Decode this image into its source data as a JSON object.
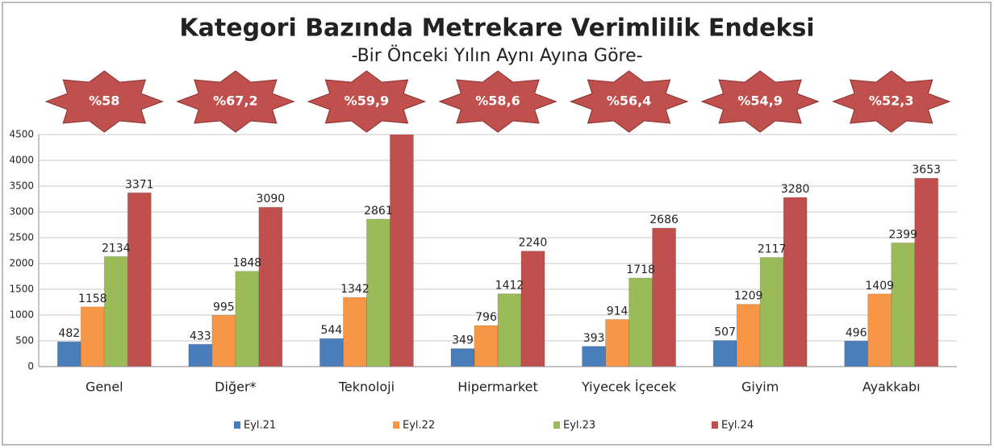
{
  "chart_data": {
    "type": "bar",
    "title": "Kategori Bazında Metrekare Verimlilik Endeksi",
    "subtitle": "-Bir Önceki Yılın Aynı Ayına Göre-",
    "categories": [
      "Genel",
      "Diğer*",
      "Teknoloji",
      "Hipermarket",
      "Yiyecek İçecek",
      "Giyim",
      "Ayakkabı"
    ],
    "badges": [
      "%58",
      "%67,2",
      "%59,9",
      "%58,6",
      "%56,4",
      "%54,9",
      "%52,3"
    ],
    "badge_color": "#c0504d",
    "series": [
      {
        "name": "Eyl.21",
        "color": "#4a7ebb",
        "values": [
          482,
          433,
          544,
          349,
          393,
          507,
          496
        ]
      },
      {
        "name": "Eyl.22",
        "color": "#f79646",
        "values": [
          1158,
          995,
          1342,
          796,
          914,
          1209,
          1409
        ]
      },
      {
        "name": "Eyl.23",
        "color": "#9bbb59",
        "values": [
          2134,
          1848,
          2861,
          1412,
          1718,
          2117,
          2399
        ]
      },
      {
        "name": "Eyl.24",
        "color": "#c0504d",
        "values": [
          3371,
          3090,
          4575,
          2240,
          2686,
          3280,
          3653
        ]
      }
    ],
    "ylim": [
      0,
      4500
    ],
    "yticks": [
      0,
      500,
      1000,
      1500,
      2000,
      2500,
      3000,
      3500,
      4000,
      4500
    ],
    "grid": true,
    "legend": "bottom"
  }
}
